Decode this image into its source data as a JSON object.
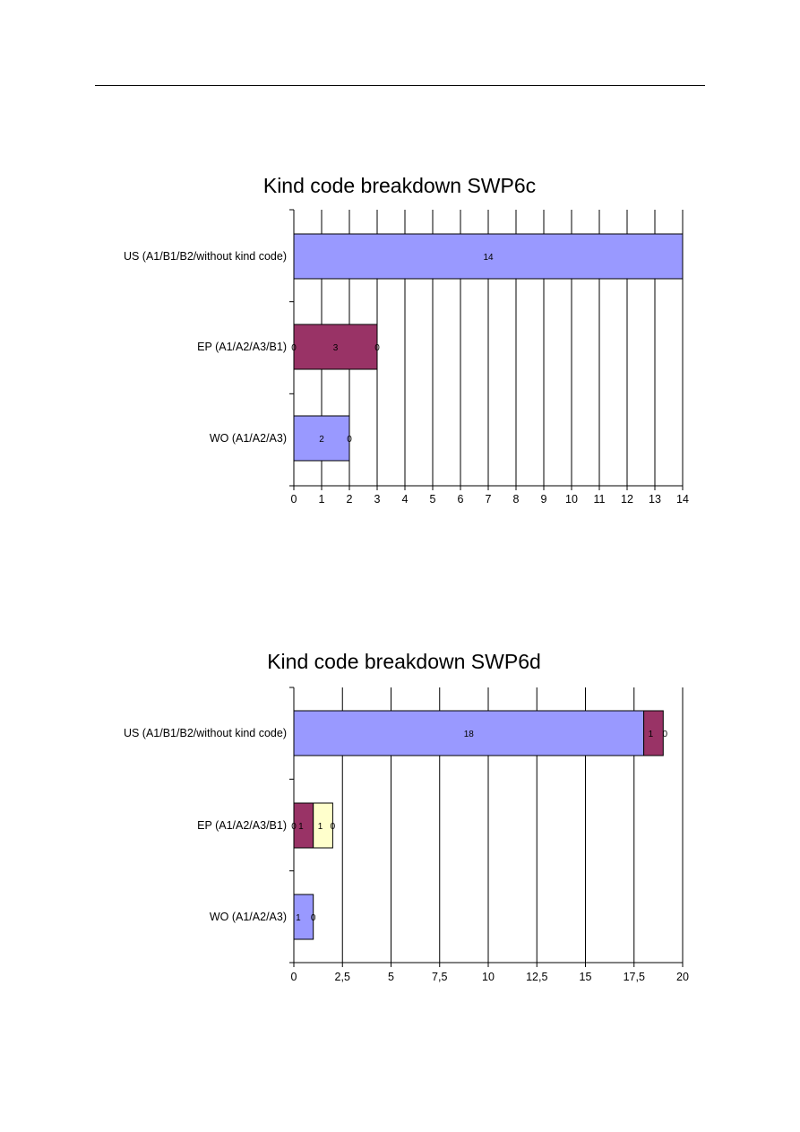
{
  "chart_data": [
    {
      "type": "bar",
      "orientation": "horizontal",
      "stacked": true,
      "title": "Kind code breakdown SWP6c",
      "categories": [
        "US (A1/B1/B2/without kind code)",
        "EP (A1/A2/A3/B1)",
        "WO (A1/A2/A3)"
      ],
      "series": [
        {
          "color": "#9999ff",
          "values": [
            14,
            0,
            2
          ]
        },
        {
          "color": "#993366",
          "values": [
            0,
            3,
            0
          ]
        },
        {
          "color": "#ffffcc",
          "values": [
            0,
            0,
            0
          ]
        }
      ],
      "data_labels": [
        [
          "14"
        ],
        [
          "0",
          "3",
          "0"
        ],
        [
          "2",
          "0"
        ]
      ],
      "xlim": [
        0,
        14
      ],
      "x_ticks": [
        "0",
        "1",
        "2",
        "3",
        "4",
        "5",
        "6",
        "7",
        "8",
        "9",
        "10",
        "11",
        "12",
        "13",
        "14"
      ],
      "grid": true,
      "legend": "none"
    },
    {
      "type": "bar",
      "orientation": "horizontal",
      "stacked": true,
      "title": "Kind code breakdown SWP6d",
      "categories": [
        "US (A1/B1/B2/without kind code)",
        "EP (A1/A2/A3/B1)",
        "WO (A1/A2/A3)"
      ],
      "series": [
        {
          "color": "#9999ff",
          "values": [
            18,
            0,
            1
          ]
        },
        {
          "color": "#993366",
          "values": [
            1,
            1,
            0
          ]
        },
        {
          "color": "#ffffcc",
          "values": [
            0,
            1,
            0
          ]
        }
      ],
      "data_labels": [
        [
          "18",
          "1",
          "0"
        ],
        [
          "0",
          "1",
          "1",
          "0"
        ],
        [
          "1",
          "0"
        ]
      ],
      "xlim": [
        0,
        20
      ],
      "x_ticks": [
        "0",
        "2,5",
        "5",
        "7,5",
        "10",
        "12,5",
        "15",
        "17,5",
        "20"
      ],
      "grid": true,
      "legend": "none"
    }
  ]
}
